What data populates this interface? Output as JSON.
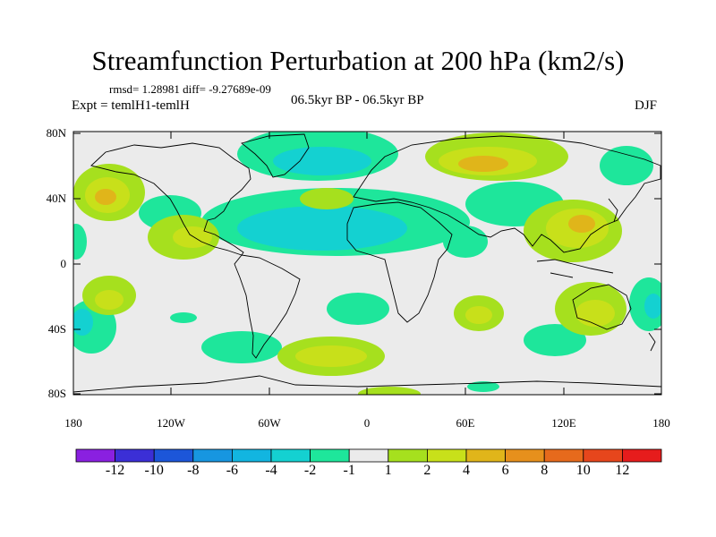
{
  "title": "Streamfunction Perturbation at 200 hPa (km2/s)",
  "stats": "rmsd= 1.28981 diff= -9.27689e-09",
  "experiment": "Expt = temlH1-temlH",
  "period": "06.5kyr BP - 06.5kyr BP",
  "season": "DJF",
  "lat_labels": [
    "80N",
    "40N",
    "0",
    "40S",
    "80S"
  ],
  "lon_labels": [
    "180",
    "120W",
    "60W",
    "0",
    "60E",
    "120E",
    "180"
  ],
  "colorbar": {
    "labels": [
      "-12",
      "-10",
      "-8",
      "-6",
      "-4",
      "-2",
      "-1",
      "1",
      "2",
      "4",
      "6",
      "8",
      "10",
      "12"
    ],
    "colors": [
      "#8a20e0",
      "#3b2fd6",
      "#1c56d9",
      "#1796e0",
      "#12b5e0",
      "#14d1d1",
      "#1ee69b",
      "#ebebeb",
      "#a6e01e",
      "#c8e01a",
      "#e0b51a",
      "#e6901c",
      "#e66a1c",
      "#e6461c",
      "#e61c1c"
    ]
  },
  "colors": {
    "neg1": "#1ee69b",
    "neg2": "#14d1d1",
    "pos1": "#a6e01e",
    "pos2": "#c8e01a",
    "pos3": "#e0b51a",
    "pos4": "#e6901c",
    "background": "#ebebeb"
  }
}
